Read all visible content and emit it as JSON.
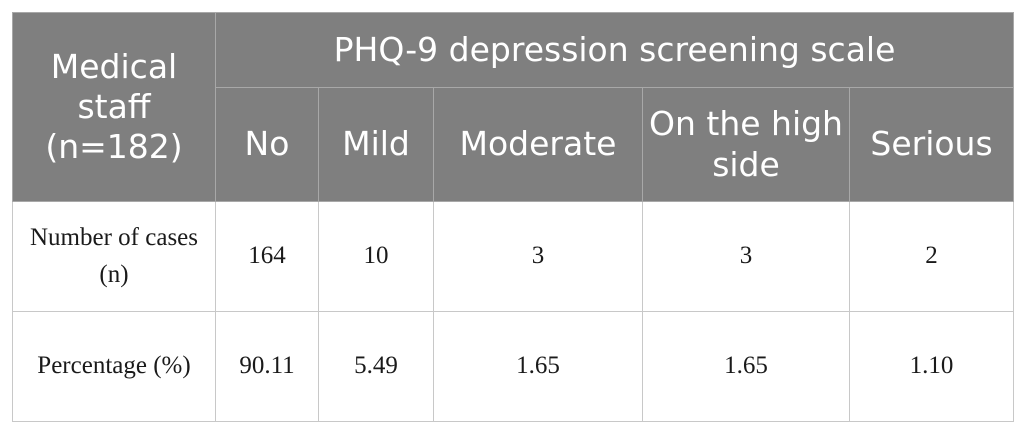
{
  "table": {
    "row_header": "Medical staff (n=182)",
    "group_header": "PHQ-9 depression screening scale",
    "columns": [
      "No",
      "Mild",
      "Moderate",
      "On the high side",
      "Serious"
    ],
    "rows": [
      {
        "label": "Number of cases (n)",
        "values": [
          "164",
          "10",
          "3",
          "3",
          "2"
        ]
      },
      {
        "label": "Percentage (%)",
        "values": [
          "90.11",
          "5.49",
          "1.65",
          "1.65",
          "1.10"
        ]
      }
    ]
  },
  "colors": {
    "header_bg": "#7f7f7f",
    "header_text": "#ffffff",
    "border": "#c8c8c8",
    "body_text": "#1a1a1a"
  }
}
